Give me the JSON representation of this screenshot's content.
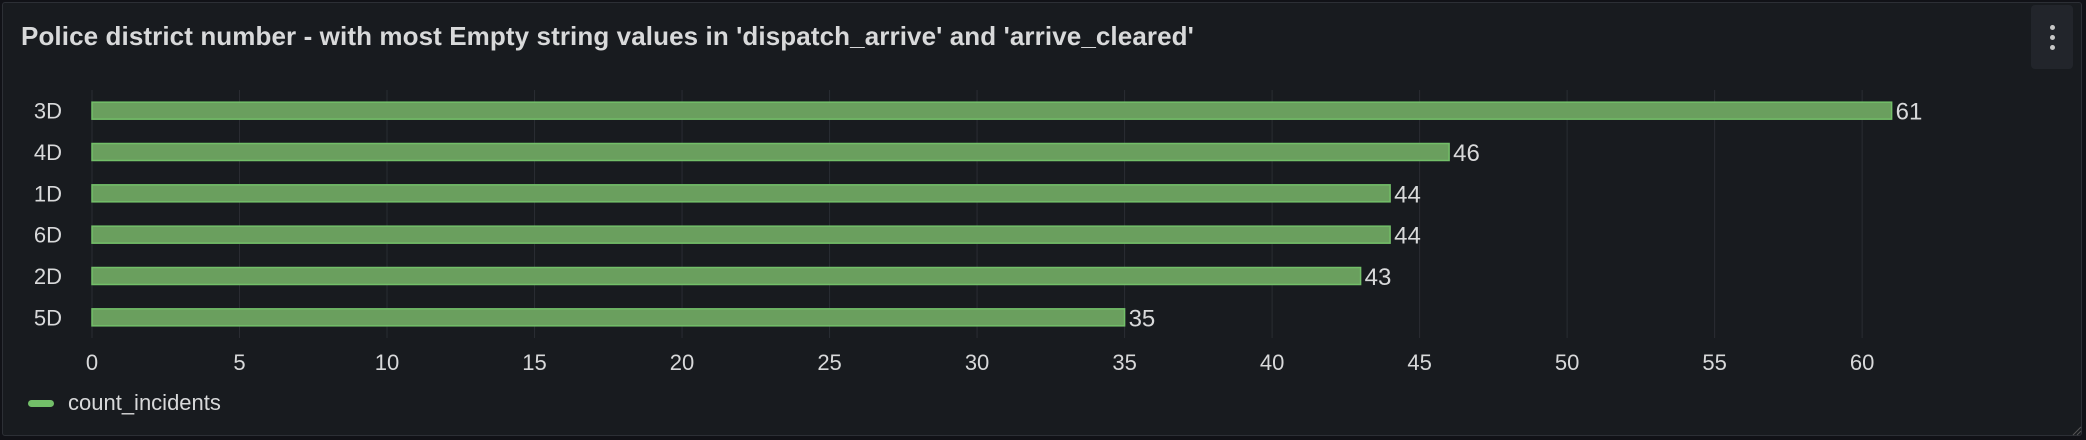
{
  "panel": {
    "title": "Police district number - with most Empty string values in 'dispatch_arrive' and 'arrive_cleared'",
    "menu_icon": "vertical-ellipsis-icon"
  },
  "colors": {
    "bar": "#73bf69",
    "bar_fill": "#6a9f5e",
    "grid": "#2a2d33",
    "text": "#d8d9da"
  },
  "chart_data": {
    "type": "bar",
    "orientation": "horizontal",
    "categories": [
      "3D",
      "4D",
      "1D",
      "6D",
      "2D",
      "5D"
    ],
    "series": [
      {
        "name": "count_incidents",
        "values": [
          61,
          46,
          44,
          44,
          43,
          35
        ]
      }
    ],
    "xticks": [
      0,
      5,
      10,
      15,
      20,
      25,
      30,
      35,
      40,
      45,
      50,
      55,
      60
    ],
    "xlim": [
      0,
      66.3
    ],
    "grid": true,
    "legend": "bottom-left",
    "data_labels": true
  },
  "legend": {
    "label": "count_incidents"
  }
}
